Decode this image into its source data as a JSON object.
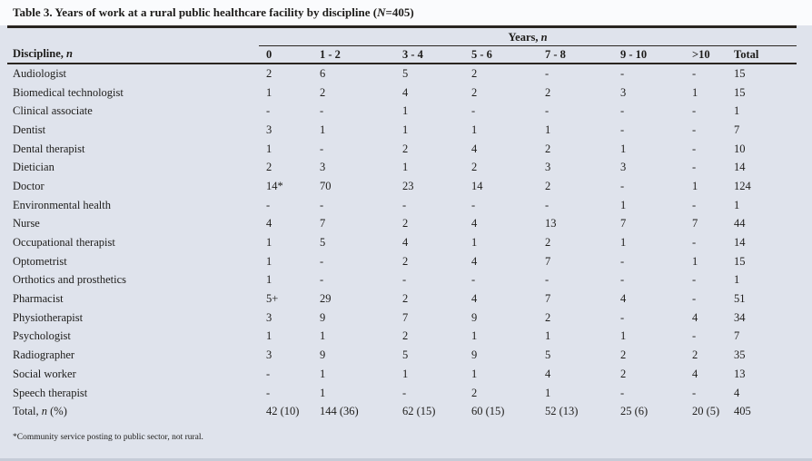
{
  "table": {
    "title": {
      "prefix": "Table 3. Years of work at a rural public healthcare facility by discipline (",
      "n_italic": "N",
      "suffix": "=405)"
    },
    "span_header": {
      "label_prefix": "Years, ",
      "label_n": "n"
    },
    "columns": {
      "discipline_prefix": "Discipline, ",
      "discipline_n": "n",
      "years": [
        "0",
        "1 - 2",
        "3 - 4",
        "5 - 6",
        "7 - 8",
        "9 - 10",
        ">10"
      ],
      "total": "Total"
    },
    "rows": [
      {
        "discipline": "Audiologist",
        "values": [
          "2",
          "6",
          "5",
          "2",
          "-",
          "-",
          "-",
          "15"
        ]
      },
      {
        "discipline": "Biomedical technologist",
        "values": [
          "1",
          "2",
          "4",
          "2",
          "2",
          "3",
          "1",
          "15"
        ]
      },
      {
        "discipline": "Clinical associate",
        "values": [
          "-",
          "-",
          "1",
          "-",
          "-",
          "-",
          "-",
          "1"
        ]
      },
      {
        "discipline": "Dentist",
        "values": [
          "3",
          "1",
          "1",
          "1",
          "1",
          "-",
          "-",
          "7"
        ]
      },
      {
        "discipline": "Dental therapist",
        "values": [
          "1",
          "-",
          "2",
          "4",
          "2",
          "1",
          "-",
          "10"
        ]
      },
      {
        "discipline": "Dietician",
        "values": [
          "2",
          "3",
          "1",
          "2",
          "3",
          "3",
          "-",
          "14"
        ]
      },
      {
        "discipline": "Doctor",
        "values": [
          "14*",
          "70",
          "23",
          "14",
          "2",
          "-",
          "1",
          "124"
        ]
      },
      {
        "discipline": "Environmental health",
        "values": [
          "-",
          "-",
          "-",
          "-",
          "-",
          "1",
          "-",
          "1"
        ]
      },
      {
        "discipline": "Nurse",
        "values": [
          "4",
          "7",
          "2",
          "4",
          "13",
          "7",
          "7",
          "44"
        ]
      },
      {
        "discipline": "Occupational therapist",
        "values": [
          "1",
          "5",
          "4",
          "1",
          "2",
          "1",
          "-",
          "14"
        ]
      },
      {
        "discipline": "Optometrist",
        "values": [
          "1",
          "-",
          "2",
          "4",
          "7",
          "-",
          "1",
          "15"
        ]
      },
      {
        "discipline": "Orthotics and prosthetics",
        "values": [
          "1",
          "-",
          "-",
          "-",
          "-",
          "-",
          "-",
          "1"
        ]
      },
      {
        "discipline": "Pharmacist",
        "values": [
          "5+",
          "29",
          "2",
          "4",
          "7",
          "4",
          "-",
          "51"
        ]
      },
      {
        "discipline": "Physiotherapist",
        "values": [
          "3",
          "9",
          "7",
          "9",
          "2",
          "-",
          "4",
          "34"
        ]
      },
      {
        "discipline": "Psychologist",
        "values": [
          "1",
          "1",
          "2",
          "1",
          "1",
          "1",
          "-",
          "7"
        ]
      },
      {
        "discipline": "Radiographer",
        "values": [
          "3",
          "9",
          "5",
          "9",
          "5",
          "2",
          "2",
          "35"
        ]
      },
      {
        "discipline": "Social worker",
        "values": [
          "-",
          "1",
          "1",
          "1",
          "4",
          "2",
          "4",
          "13"
        ]
      },
      {
        "discipline": "Speech therapist",
        "values": [
          "-",
          "1",
          "-",
          "2",
          "1",
          "-",
          "-",
          "4"
        ]
      }
    ],
    "total_row": {
      "label_prefix": "Total, ",
      "label_n": "n",
      "label_suffix": " (%)",
      "values": [
        "42 (10)",
        "144 (36)",
        "62 (15)",
        "60 (15)",
        "52 (13)",
        "25 (6)",
        "20 (5)",
        "405"
      ]
    },
    "footnote": "*Community service posting to public sector, not rural.",
    "colors": {
      "body_background": "#dfe3ec",
      "title_background": "#fafbfd",
      "rule": "#292420",
      "text": "#1e1d1b"
    }
  }
}
